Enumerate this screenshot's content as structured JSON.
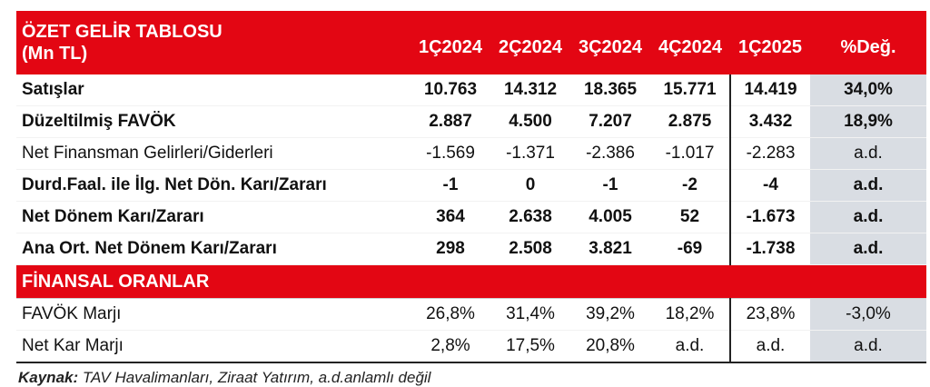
{
  "header": {
    "title_line1": "ÖZET GELİR TABLOSU",
    "title_line2": "(Mn TL)",
    "columns": [
      "1Ç2024",
      "2Ç2024",
      "3Ç2024",
      "4Ç2024",
      "1Ç2025",
      "%Değ."
    ]
  },
  "income_rows": [
    {
      "label": "Satışlar",
      "values": [
        "10.763",
        "14.312",
        "18.365",
        "15.771",
        "14.419",
        "34,0%"
      ],
      "bold": true
    },
    {
      "label": "Düzeltilmiş FAVÖK",
      "values": [
        "2.887",
        "4.500",
        "7.207",
        "2.875",
        "3.432",
        "18,9%"
      ],
      "bold": true
    },
    {
      "label": "Net  Finansman Gelirleri/Giderleri",
      "values": [
        "-1.569",
        "-1.371",
        "-2.386",
        "-1.017",
        "-2.283",
        "a.d."
      ],
      "bold": false
    },
    {
      "label": "Durd.Faal. ile İlg. Net Dön. Karı/Zararı",
      "values": [
        "-1",
        "0",
        "-1",
        "-2",
        "-4",
        "a.d."
      ],
      "bold": true
    },
    {
      "label": "Net Dönem Karı/Zararı",
      "values": [
        "364",
        "2.638",
        "4.005",
        "52",
        "-1.673",
        "a.d."
      ],
      "bold": true
    },
    {
      "label": "Ana Ort. Net Dönem Karı/Zararı",
      "values": [
        "298",
        "2.508",
        "3.821",
        "-69",
        "-1.738",
        "a.d."
      ],
      "bold": true
    }
  ],
  "section_title": "FİNANSAL ORANLAR",
  "ratio_rows": [
    {
      "label": "FAVÖK Marjı",
      "values": [
        "26,8%",
        "31,4%",
        "39,2%",
        "18,2%",
        "23,8%",
        "-3,0%"
      ]
    },
    {
      "label": "Net Kar Marjı",
      "values": [
        "2,8%",
        "17,5%",
        "20,8%",
        "a.d.",
        "a.d.",
        "a.d."
      ]
    }
  ],
  "source": {
    "label": "Kaynak:",
    "text": " TAV Havalimanları, Ziraat Yatırım, a.d.anlamlı değil"
  }
}
